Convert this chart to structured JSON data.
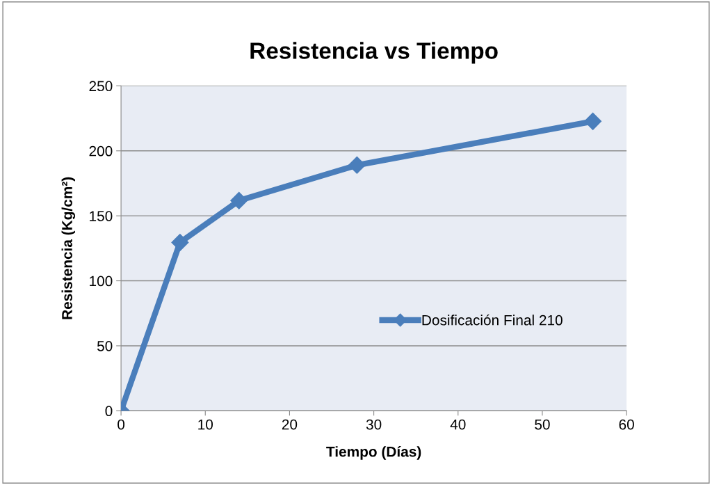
{
  "chart_data": {
    "type": "line",
    "title": "Resistencia vs Tiempo",
    "xlabel": "Tiempo (Días)",
    "ylabel": "Resistencia (Kg/cm²)",
    "x": [
      0,
      7,
      14,
      28,
      56
    ],
    "series": [
      {
        "name": "Dosificación Final 210",
        "color": "#4a7ebb",
        "values": [
          0,
          129.5,
          161.7,
          189,
          222.7
        ]
      }
    ],
    "xlim": [
      0,
      60
    ],
    "xticks": [
      0,
      10,
      20,
      30,
      40,
      50,
      60
    ],
    "ylim": [
      0,
      250
    ],
    "yticks": [
      0,
      50,
      100,
      150,
      200,
      250
    ],
    "grid": "y",
    "legend": "center right",
    "marker": "diamond",
    "line_style": "solid"
  }
}
